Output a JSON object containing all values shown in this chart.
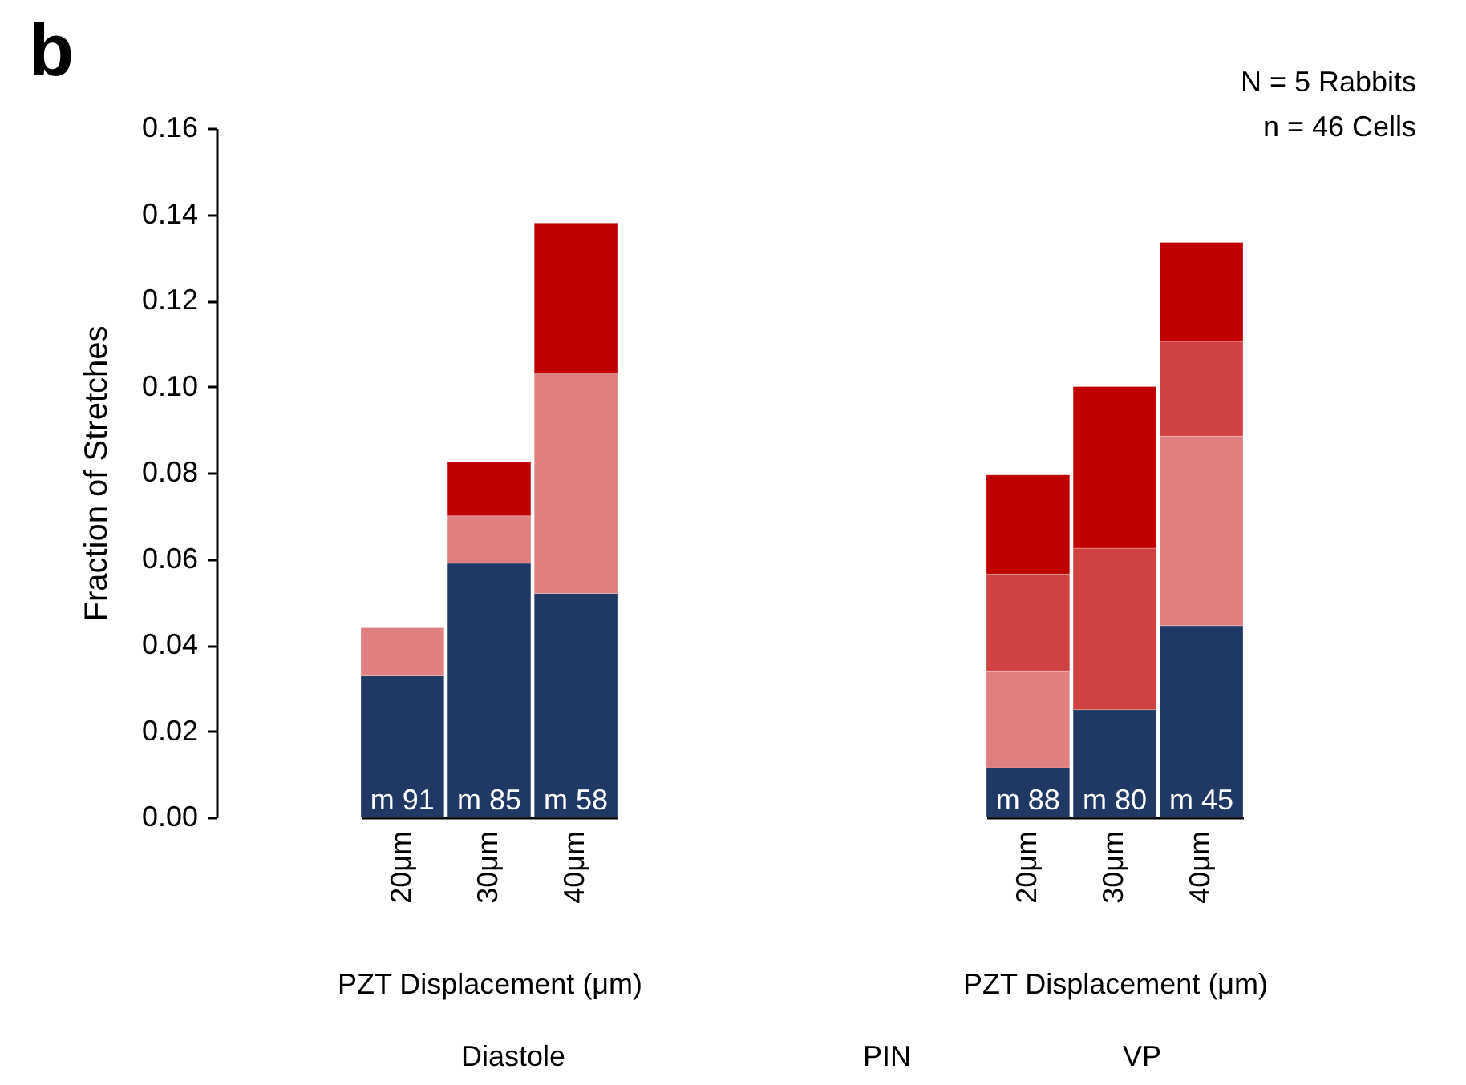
{
  "chart_data": [
    {
      "type": "bar",
      "title": "b",
      "ylabel": "Fraction of Stretches",
      "xlabel": "PZT Displacement (μm)",
      "categories": [
        "20μm",
        "30μm",
        "40μm"
      ],
      "stacked": true,
      "series": [
        {
          "color": "#1f3864",
          "values": [
            0.033,
            0.059,
            0.052
          ]
        },
        {
          "color": "#e07f7f",
          "values": [
            0.011,
            0.011,
            0.051
          ]
        },
        {
          "color": "#c00000",
          "values": [
            null,
            0.0125,
            0.035
          ]
        }
      ],
      "ylim": [
        0,
        0.16
      ],
      "yticks": [
        {
          "value": 0,
          "label": "0.00"
        },
        0.02,
        0.04,
        0.06,
        0.08,
        {
          "value": 0.1,
          "label": "0.10"
        },
        0.12,
        0.14,
        0.16
      ],
      "annotations": [
        {
          "text": "m 91",
          "x": "20μm",
          "y": 0
        },
        {
          "text": "m 85",
          "x": "30μm",
          "y": 0
        },
        {
          "text": "m 58",
          "x": "40μm",
          "y": 0
        },
        "Diastole"
      ]
    },
    {
      "type": "bar",
      "xlabel": "PZT Displacement (μm)",
      "categories": [
        "20μm",
        "30μm",
        "40μm"
      ],
      "stacked": true,
      "tick_labels": "x",
      "series": [
        {
          "color": "#1f3864",
          "values": [
            0.0115,
            0.025,
            0.0445
          ]
        },
        {
          "color": "#e07f7f",
          "values": [
            0.0225,
            null,
            0.044
          ]
        },
        {
          "color": "#d04242",
          "values": [
            0.0225,
            0.0375,
            0.022
          ]
        },
        {
          "color": "#c00000",
          "values": [
            0.023,
            0.0375,
            0.023
          ]
        }
      ],
      "ylim": [
        0,
        0.16
      ],
      "annotations": [
        {
          "text": "m 88",
          "x": "20μm",
          "y": 0
        },
        {
          "text": "m 80",
          "x": "30μm",
          "y": 0
        },
        {
          "text": "m 45",
          "x": "40μm",
          "y": 0
        },
        "PIN",
        "VP",
        "N = 5 Rabbits",
        "n = 46 Cells"
      ]
    }
  ]
}
